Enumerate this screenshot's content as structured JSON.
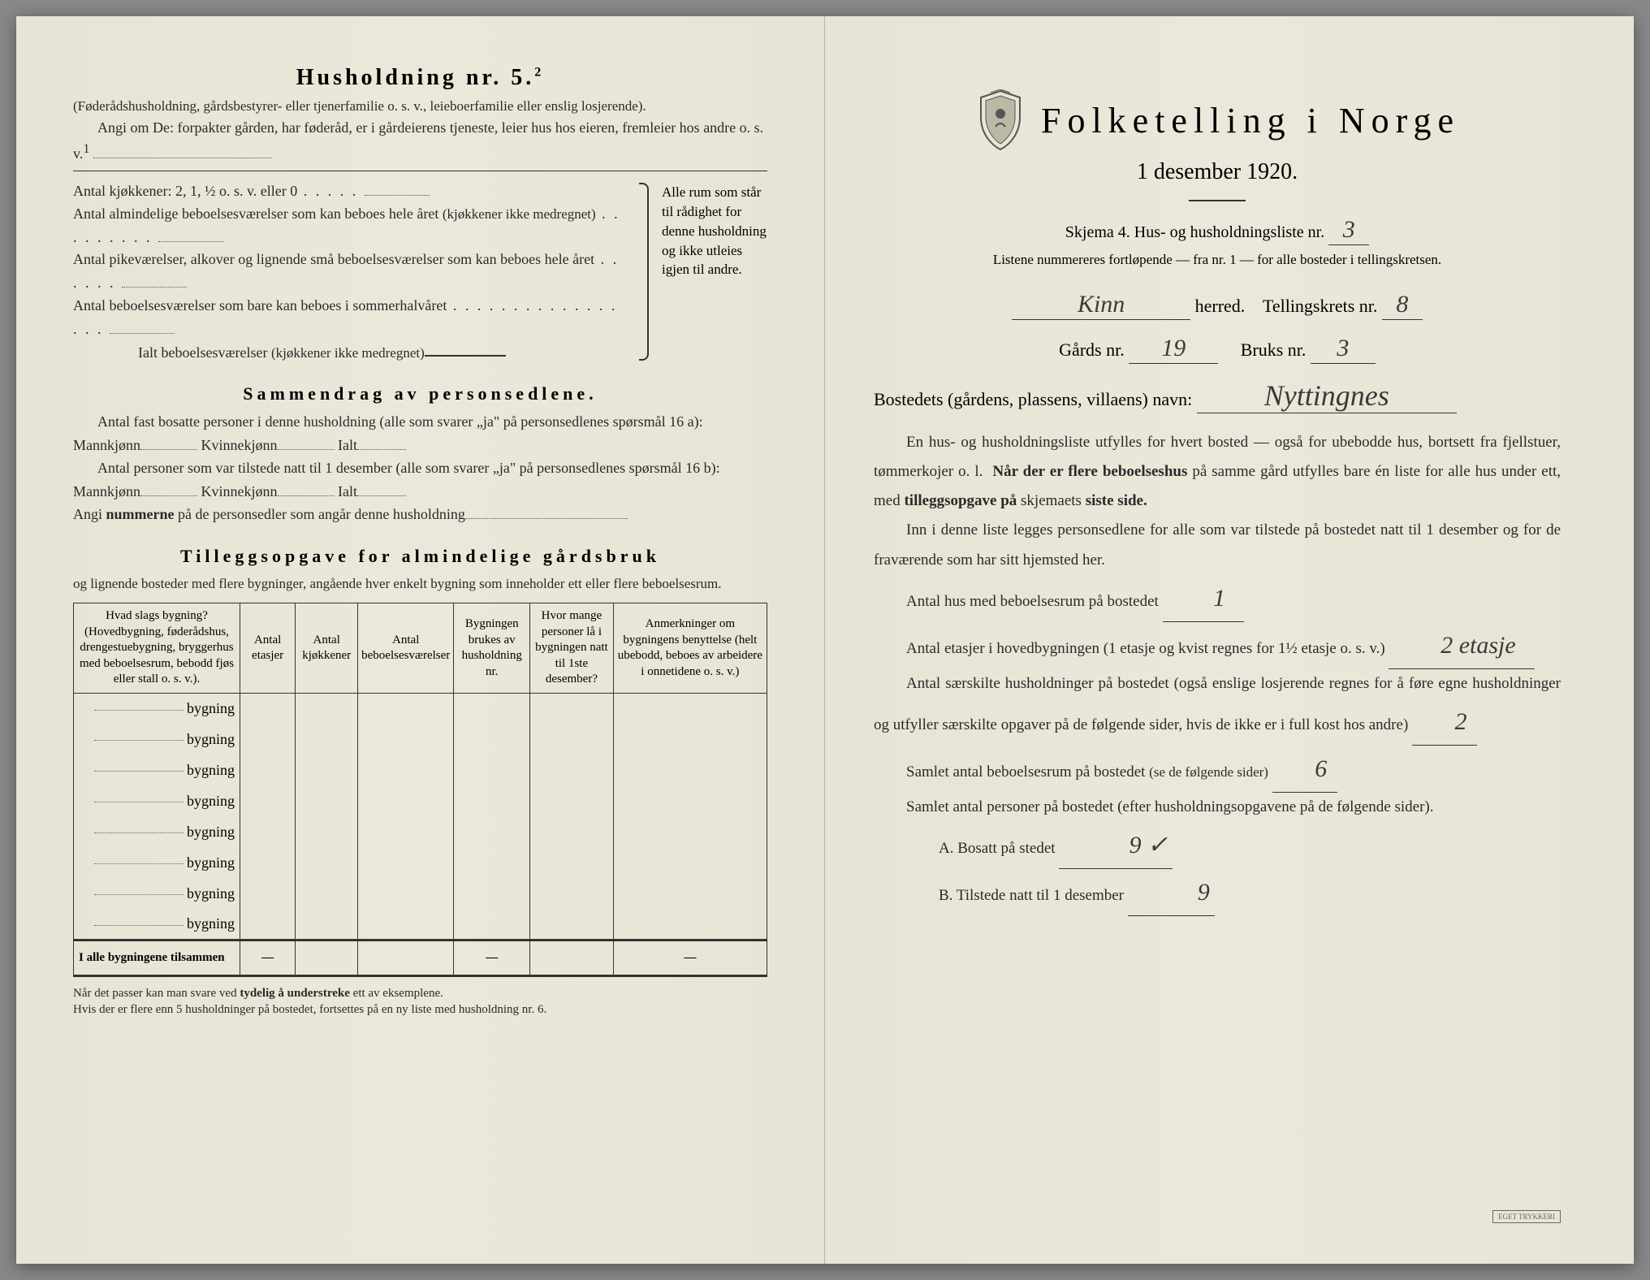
{
  "colors": {
    "paper": "#e8e6d8",
    "ink": "#2a2a2a",
    "rule": "#333333",
    "dotted": "#555555"
  },
  "left": {
    "heading": "Husholdning nr. 5.",
    "heading_sup": "2",
    "parenthetical": "(Føderådshusholdning, gårdsbestyrer- eller tjenerfamilie o. s. v., leieboerfamilie eller enslig losjerende).",
    "angi": "Angi om De:  forpakter gården, har føderåd, er i gårdeierens tjeneste, leier hus hos eieren, fremleier hos andre o. s. v.",
    "angi_sup": "1",
    "kitchens_label": "Antal kjøkkener: 2, 1, ½ o. s. v. eller 0",
    "rooms1": "Antal almindelige beboelsesværelser som kan beboes hele året",
    "rooms1_note": "(kjøkkener ikke medregnet)",
    "rooms2": "Antal pikeværelser, alkover og lignende små beboelsesværelser som kan beboes hele året",
    "rooms3": "Antal beboelsesværelser som bare kan beboes i sommerhalvåret",
    "rooms_total": "Ialt beboelsesværelser",
    "rooms_total_note": "(kjøkkener ikke medregnet)",
    "bracket_text": "Alle rum som står til rådighet for denne husholdning og ikke utleies igjen til andre.",
    "sammendrag_title": "Sammendrag av personsedlene.",
    "samm_p1a": "Antal fast bosatte personer i denne husholdning (alle som svarer „ja\" på personsedlenes spørsmål 16 a): Mannkjønn",
    "samm_kvin": "Kvinnekjønn",
    "samm_ialt": "Ialt",
    "samm_p1b": "Antal personer som var tilstede natt til 1 desember (alle som svarer „ja\" på personsedlenes spørsmål 16 b): Mannkjønn",
    "angi_nummerne": "Angi nummerne på de personsedler som angår denne husholdning",
    "tillegg_title": "Tilleggsopgave for almindelige gårdsbruk",
    "tillegg_sub": "og lignende bosteder med flere bygninger, angående hver enkelt bygning som inneholder ett eller flere beboelsesrum.",
    "table": {
      "headers": [
        "Hvad slags bygning?\n(Hovedbygning, føderådshus, drengestuebygning, bryggerhus med beboelsesrum, bebodd fjøs eller stall o. s. v.).",
        "Antal etasjer",
        "Antal kjøkkener",
        "Antal beboelsesværelser",
        "Bygningen brukes av husholdning nr.",
        "Hvor mange personer lå i bygningen natt til 1ste desember?",
        "Anmerkninger om bygningens benyttelse (helt ubebodd, beboes av arbeidere i onnetidene o. s. v.)"
      ],
      "row_label": "bygning",
      "row_count": 8,
      "total_label": "I alle bygningene tilsammen"
    },
    "footnote": "Når det passer kan man svare ved tydelig å understreke ett av eksemplene.\nHvis der er flere enn 5 husholdninger på bostedet, fortsettes på en ny liste med husholdning nr. 6."
  },
  "right": {
    "title": "Folketelling i Norge",
    "date": "1 desember 1920.",
    "skjema_prefix": "Skjema 4.  Hus- og husholdningsliste nr.",
    "skjema_nr": "3",
    "listene": "Listene nummereres fortløpende — fra nr. 1 — for alle bosteder i tellingskretsen.",
    "herred_value": "Kinn",
    "herred_label": "herred.",
    "tellingskrets_label": "Tellingskrets nr.",
    "tellingskrets_nr": "8",
    "gards_label": "Gårds nr.",
    "gards_nr": "19",
    "bruks_label": "Bruks nr.",
    "bruks_nr": "3",
    "bosted_label": "Bostedets (gårdens, plassens, villaens) navn:",
    "bosted_value": "Nyttingnes",
    "para1": "En hus- og husholdningsliste utfylles for hvert bosted — også for ubebodde hus, bortsett fra fjellstuer, tømmerkojer o. l.  Når der er flere beboelseshus på samme gård utfylles bare én liste for alle hus under ett, med tilleggsopgave på skjemaets siste side.",
    "para2": "Inn i denne liste legges personsedlene for alle som var tilstede på bostedet natt til 1 desember og for de fraværende som har sitt hjemsted her.",
    "antal_hus_label": "Antal hus med beboelsesrum på bostedet",
    "antal_hus_value": "1",
    "etasjer_label_a": "Antal etasjer i hovedbygningen (1 etasje og kvist regnes for 1½ etasje o. s. v.)",
    "etasjer_value": "2 etasje",
    "saerskilte": "Antal særskilte husholdninger på bostedet (også enslige losjerende regnes for å føre egne husholdninger og utfyller særskilte opgaver på de følgende sider, hvis de ikke er i full kost hos andre)",
    "saerskilte_value": "2",
    "samlet_rum_label": "Samlet antal beboelsesrum på bostedet",
    "samlet_rum_note": "(se de følgende sider)",
    "samlet_rum_value": "6",
    "samlet_pers_label": "Samlet antal personer på bostedet (efter husholdningsopgavene på de følgende sider).",
    "a_label": "A.  Bosatt på stedet",
    "a_value": "9 ✓",
    "b_label": "B.  Tilstede natt til 1 desember",
    "b_value": "9"
  }
}
